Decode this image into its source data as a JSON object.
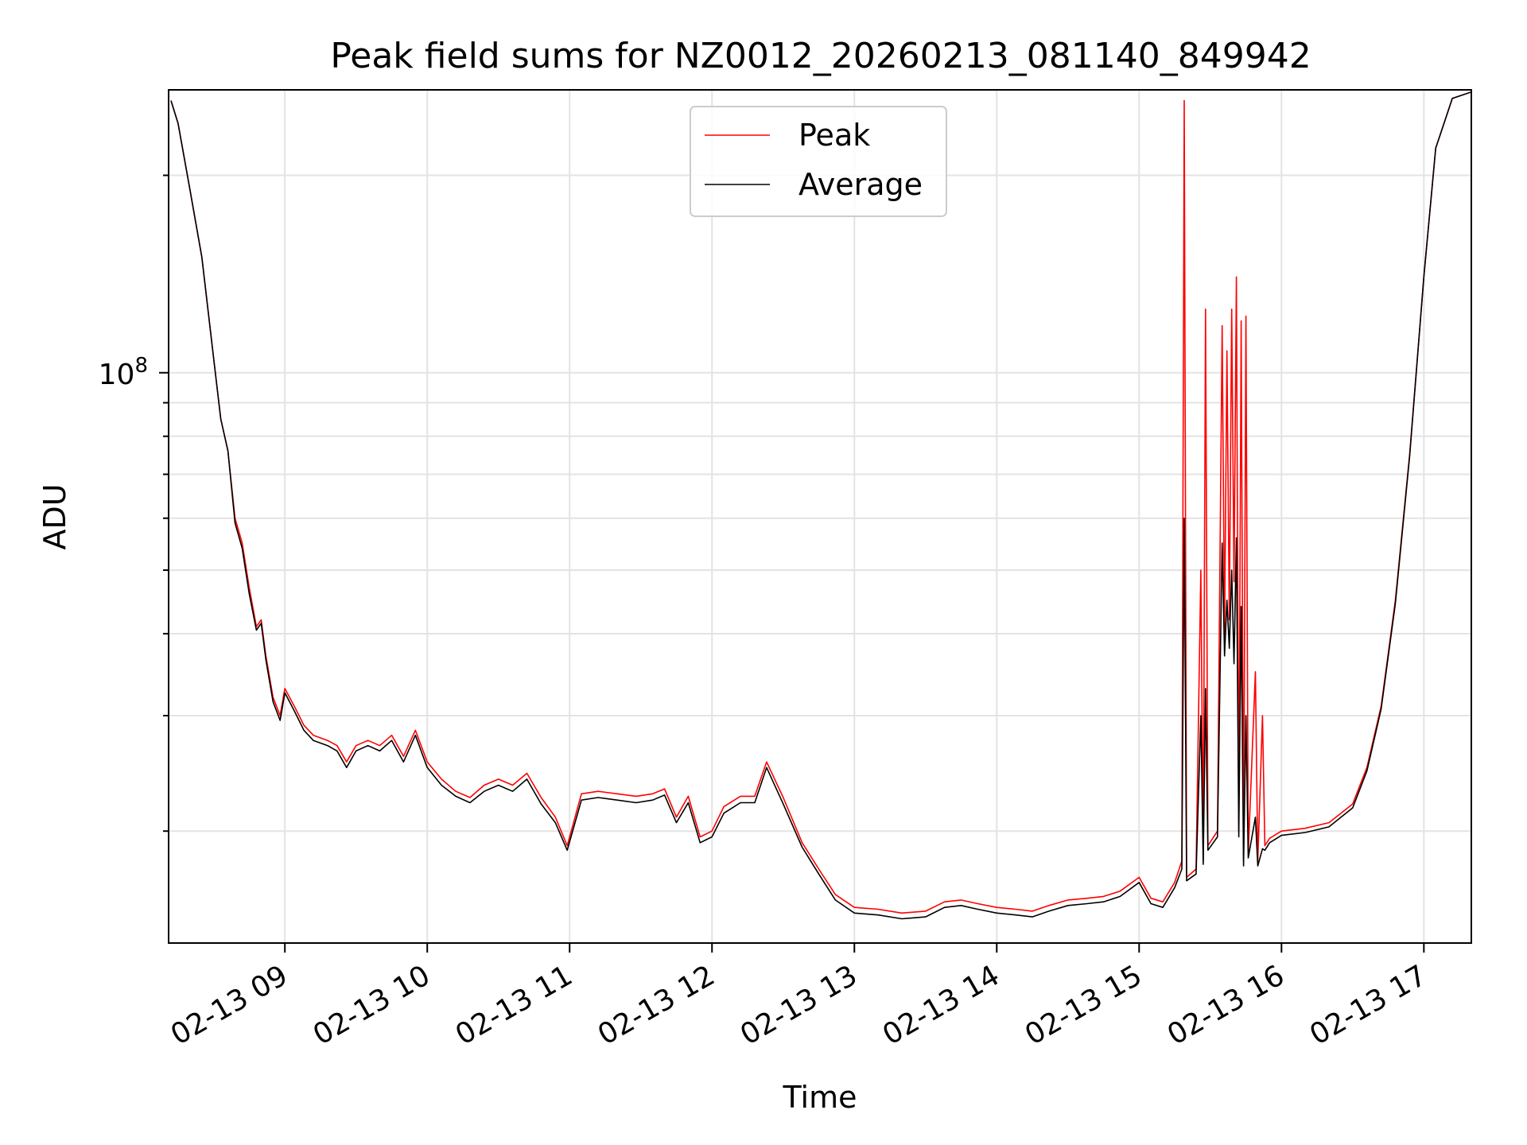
{
  "chart_data": {
    "type": "line",
    "title": "Peak field sums for NZ0012_20260213_081140_849942",
    "xlabel": "Time",
    "ylabel": "ADU",
    "y_scale": "log",
    "grid": true,
    "legend_position": "upper-center",
    "x_tick_labels": [
      "02-13 09",
      "02-13 10",
      "02-13 11",
      "02-13 12",
      "02-13 13",
      "02-13 14",
      "02-13 15",
      "02-13 16",
      "02-13 17"
    ],
    "y_tick_labels": [
      {
        "base": "10",
        "exponent": "8"
      }
    ],
    "xlim": [
      "2026-02-13 08:11",
      "2026-02-13 17:20"
    ],
    "ylim": [
      13500000,
      270000000
    ],
    "series": [
      {
        "name": "Peak",
        "color": "#ff0000",
        "points": [
          [
            "2026-02-13 08:12",
            260000000
          ],
          [
            "2026-02-13 08:15",
            240000000
          ],
          [
            "2026-02-13 08:20",
            190000000
          ],
          [
            "2026-02-13 08:25",
            150000000
          ],
          [
            "2026-02-13 08:30",
            105000000
          ],
          [
            "2026-02-13 08:33",
            85000000
          ],
          [
            "2026-02-13 08:36",
            76000000
          ],
          [
            "2026-02-13 08:39",
            60000000
          ],
          [
            "2026-02-13 08:42",
            55000000
          ],
          [
            "2026-02-13 08:45",
            47000000
          ],
          [
            "2026-02-13 08:48",
            41000000
          ],
          [
            "2026-02-13 08:50",
            42000000
          ],
          [
            "2026-02-13 08:52",
            37000000
          ],
          [
            "2026-02-13 08:55",
            32000000
          ],
          [
            "2026-02-13 08:58",
            30000000
          ],
          [
            "2026-02-13 09:00",
            33000000
          ],
          [
            "2026-02-13 09:04",
            31000000
          ],
          [
            "2026-02-13 09:08",
            29000000
          ],
          [
            "2026-02-13 09:12",
            28000000
          ],
          [
            "2026-02-13 09:18",
            27500000
          ],
          [
            "2026-02-13 09:22",
            27000000
          ],
          [
            "2026-02-13 09:26",
            25500000
          ],
          [
            "2026-02-13 09:30",
            27000000
          ],
          [
            "2026-02-13 09:35",
            27500000
          ],
          [
            "2026-02-13 09:40",
            27000000
          ],
          [
            "2026-02-13 09:45",
            28000000
          ],
          [
            "2026-02-13 09:50",
            26000000
          ],
          [
            "2026-02-13 09:55",
            28500000
          ],
          [
            "2026-02-13 10:00",
            25500000
          ],
          [
            "2026-02-13 10:06",
            24000000
          ],
          [
            "2026-02-13 10:12",
            23000000
          ],
          [
            "2026-02-13 10:18",
            22500000
          ],
          [
            "2026-02-13 10:24",
            23500000
          ],
          [
            "2026-02-13 10:30",
            24000000
          ],
          [
            "2026-02-13 10:36",
            23500000
          ],
          [
            "2026-02-13 10:42",
            24500000
          ],
          [
            "2026-02-13 10:48",
            22500000
          ],
          [
            "2026-02-13 10:54",
            21000000
          ],
          [
            "2026-02-13 10:59",
            19000000
          ],
          [
            "2026-02-13 11:05",
            22800000
          ],
          [
            "2026-02-13 11:12",
            23000000
          ],
          [
            "2026-02-13 11:20",
            22800000
          ],
          [
            "2026-02-13 11:28",
            22600000
          ],
          [
            "2026-02-13 11:35",
            22800000
          ],
          [
            "2026-02-13 11:40",
            23200000
          ],
          [
            "2026-02-13 11:45",
            21000000
          ],
          [
            "2026-02-13 11:50",
            22600000
          ],
          [
            "2026-02-13 11:55",
            19600000
          ],
          [
            "2026-02-13 12:00",
            20000000
          ],
          [
            "2026-02-13 12:05",
            21800000
          ],
          [
            "2026-02-13 12:12",
            22600000
          ],
          [
            "2026-02-13 12:18",
            22600000
          ],
          [
            "2026-02-13 12:23",
            25500000
          ],
          [
            "2026-02-13 12:30",
            22500000
          ],
          [
            "2026-02-13 12:38",
            19200000
          ],
          [
            "2026-02-13 12:45",
            17500000
          ],
          [
            "2026-02-13 12:52",
            16000000
          ],
          [
            "2026-02-13 13:00",
            15300000
          ],
          [
            "2026-02-13 13:10",
            15200000
          ],
          [
            "2026-02-13 13:20",
            15000000
          ],
          [
            "2026-02-13 13:30",
            15100000
          ],
          [
            "2026-02-13 13:38",
            15600000
          ],
          [
            "2026-02-13 13:45",
            15700000
          ],
          [
            "2026-02-13 13:52",
            15500000
          ],
          [
            "2026-02-13 14:00",
            15300000
          ],
          [
            "2026-02-13 14:08",
            15200000
          ],
          [
            "2026-02-13 14:15",
            15100000
          ],
          [
            "2026-02-13 14:22",
            15400000
          ],
          [
            "2026-02-13 14:30",
            15700000
          ],
          [
            "2026-02-13 14:38",
            15800000
          ],
          [
            "2026-02-13 14:45",
            15900000
          ],
          [
            "2026-02-13 14:52",
            16200000
          ],
          [
            "2026-02-13 15:00",
            17000000
          ],
          [
            "2026-02-13 15:05",
            15800000
          ],
          [
            "2026-02-13 15:10",
            15600000
          ],
          [
            "2026-02-13 15:15",
            16700000
          ],
          [
            "2026-02-13 15:18",
            18000000
          ],
          [
            "2026-02-13 15:19",
            260000000
          ],
          [
            "2026-02-13 15:20",
            17000000
          ],
          [
            "2026-02-13 15:24",
            17500000
          ],
          [
            "2026-02-13 15:26",
            50000000
          ],
          [
            "2026-02-13 15:27",
            18000000
          ],
          [
            "2026-02-13 15:28",
            125000000
          ],
          [
            "2026-02-13 15:29",
            19000000
          ],
          [
            "2026-02-13 15:33",
            20000000
          ],
          [
            "2026-02-13 15:35",
            118000000
          ],
          [
            "2026-02-13 15:36",
            40000000
          ],
          [
            "2026-02-13 15:37",
            108000000
          ],
          [
            "2026-02-13 15:38",
            42000000
          ],
          [
            "2026-02-13 15:39",
            125000000
          ],
          [
            "2026-02-13 15:40",
            48000000
          ],
          [
            "2026-02-13 15:41",
            140000000
          ],
          [
            "2026-02-13 15:42",
            20000000
          ],
          [
            "2026-02-13 15:43",
            120000000
          ],
          [
            "2026-02-13 15:44",
            18000000
          ],
          [
            "2026-02-13 15:45",
            122000000
          ],
          [
            "2026-02-13 15:46",
            18500000
          ],
          [
            "2026-02-13 15:49",
            35000000
          ],
          [
            "2026-02-13 15:50",
            18000000
          ],
          [
            "2026-02-13 15:52",
            30000000
          ],
          [
            "2026-02-13 15:53",
            19000000
          ],
          [
            "2026-02-13 15:55",
            19500000
          ],
          [
            "2026-02-13 16:00",
            20000000
          ],
          [
            "2026-02-13 16:10",
            20200000
          ],
          [
            "2026-02-13 16:20",
            20600000
          ],
          [
            "2026-02-13 16:30",
            22000000
          ],
          [
            "2026-02-13 16:36",
            25000000
          ],
          [
            "2026-02-13 16:42",
            31000000
          ],
          [
            "2026-02-13 16:48",
            45000000
          ],
          [
            "2026-02-13 16:54",
            75000000
          ],
          [
            "2026-02-13 17:00",
            140000000
          ],
          [
            "2026-02-13 17:05",
            220000000
          ],
          [
            "2026-02-13 17:12",
            262000000
          ],
          [
            "2026-02-13 17:20",
            268000000
          ]
        ]
      },
      {
        "name": "Average",
        "color": "#000000",
        "points": [
          [
            "2026-02-13 08:12",
            260000000
          ],
          [
            "2026-02-13 08:15",
            240000000
          ],
          [
            "2026-02-13 08:20",
            190000000
          ],
          [
            "2026-02-13 08:25",
            150000000
          ],
          [
            "2026-02-13 08:30",
            105000000
          ],
          [
            "2026-02-13 08:33",
            85000000
          ],
          [
            "2026-02-13 08:36",
            76000000
          ],
          [
            "2026-02-13 08:39",
            59000000
          ],
          [
            "2026-02-13 08:42",
            54000000
          ],
          [
            "2026-02-13 08:45",
            46000000
          ],
          [
            "2026-02-13 08:48",
            40500000
          ],
          [
            "2026-02-13 08:50",
            41500000
          ],
          [
            "2026-02-13 08:52",
            36500000
          ],
          [
            "2026-02-13 08:55",
            31500000
          ],
          [
            "2026-02-13 08:58",
            29500000
          ],
          [
            "2026-02-13 09:00",
            32500000
          ],
          [
            "2026-02-13 09:04",
            30500000
          ],
          [
            "2026-02-13 09:08",
            28500000
          ],
          [
            "2026-02-13 09:12",
            27500000
          ],
          [
            "2026-02-13 09:18",
            27000000
          ],
          [
            "2026-02-13 09:22",
            26500000
          ],
          [
            "2026-02-13 09:26",
            25000000
          ],
          [
            "2026-02-13 09:30",
            26500000
          ],
          [
            "2026-02-13 09:35",
            27000000
          ],
          [
            "2026-02-13 09:40",
            26500000
          ],
          [
            "2026-02-13 09:45",
            27500000
          ],
          [
            "2026-02-13 09:50",
            25500000
          ],
          [
            "2026-02-13 09:55",
            28000000
          ],
          [
            "2026-02-13 10:00",
            25000000
          ],
          [
            "2026-02-13 10:06",
            23500000
          ],
          [
            "2026-02-13 10:12",
            22600000
          ],
          [
            "2026-02-13 10:18",
            22100000
          ],
          [
            "2026-02-13 10:24",
            23000000
          ],
          [
            "2026-02-13 10:30",
            23500000
          ],
          [
            "2026-02-13 10:36",
            23000000
          ],
          [
            "2026-02-13 10:42",
            24000000
          ],
          [
            "2026-02-13 10:48",
            22000000
          ],
          [
            "2026-02-13 10:54",
            20600000
          ],
          [
            "2026-02-13 10:59",
            18700000
          ],
          [
            "2026-02-13 11:05",
            22300000
          ],
          [
            "2026-02-13 11:12",
            22500000
          ],
          [
            "2026-02-13 11:20",
            22300000
          ],
          [
            "2026-02-13 11:28",
            22100000
          ],
          [
            "2026-02-13 11:35",
            22300000
          ],
          [
            "2026-02-13 11:40",
            22700000
          ],
          [
            "2026-02-13 11:45",
            20600000
          ],
          [
            "2026-02-13 11:50",
            22100000
          ],
          [
            "2026-02-13 11:55",
            19200000
          ],
          [
            "2026-02-13 12:00",
            19600000
          ],
          [
            "2026-02-13 12:05",
            21300000
          ],
          [
            "2026-02-13 12:12",
            22100000
          ],
          [
            "2026-02-13 12:18",
            22100000
          ],
          [
            "2026-02-13 12:23",
            25000000
          ],
          [
            "2026-02-13 12:30",
            22000000
          ],
          [
            "2026-02-13 12:38",
            18900000
          ],
          [
            "2026-02-13 12:45",
            17200000
          ],
          [
            "2026-02-13 12:52",
            15700000
          ],
          [
            "2026-02-13 13:00",
            15000000
          ],
          [
            "2026-02-13 13:10",
            14900000
          ],
          [
            "2026-02-13 13:20",
            14700000
          ],
          [
            "2026-02-13 13:30",
            14800000
          ],
          [
            "2026-02-13 13:38",
            15300000
          ],
          [
            "2026-02-13 13:45",
            15400000
          ],
          [
            "2026-02-13 13:52",
            15200000
          ],
          [
            "2026-02-13 14:00",
            15000000
          ],
          [
            "2026-02-13 14:08",
            14900000
          ],
          [
            "2026-02-13 14:15",
            14800000
          ],
          [
            "2026-02-13 14:22",
            15100000
          ],
          [
            "2026-02-13 14:30",
            15400000
          ],
          [
            "2026-02-13 14:38",
            15500000
          ],
          [
            "2026-02-13 14:45",
            15600000
          ],
          [
            "2026-02-13 14:52",
            15900000
          ],
          [
            "2026-02-13 15:00",
            16700000
          ],
          [
            "2026-02-13 15:05",
            15500000
          ],
          [
            "2026-02-13 15:10",
            15300000
          ],
          [
            "2026-02-13 15:15",
            16400000
          ],
          [
            "2026-02-13 15:18",
            17500000
          ],
          [
            "2026-02-13 15:19",
            60000000
          ],
          [
            "2026-02-13 15:20",
            16800000
          ],
          [
            "2026-02-13 15:24",
            17200000
          ],
          [
            "2026-02-13 15:26",
            30000000
          ],
          [
            "2026-02-13 15:27",
            17800000
          ],
          [
            "2026-02-13 15:28",
            33000000
          ],
          [
            "2026-02-13 15:29",
            18700000
          ],
          [
            "2026-02-13 15:33",
            19600000
          ],
          [
            "2026-02-13 15:35",
            55000000
          ],
          [
            "2026-02-13 15:36",
            37000000
          ],
          [
            "2026-02-13 15:37",
            45000000
          ],
          [
            "2026-02-13 15:38",
            38000000
          ],
          [
            "2026-02-13 15:39",
            50000000
          ],
          [
            "2026-02-13 15:40",
            36000000
          ],
          [
            "2026-02-13 15:41",
            56000000
          ],
          [
            "2026-02-13 15:42",
            19600000
          ],
          [
            "2026-02-13 15:43",
            44000000
          ],
          [
            "2026-02-13 15:44",
            17700000
          ],
          [
            "2026-02-13 15:45",
            30000000
          ],
          [
            "2026-02-13 15:46",
            18200000
          ],
          [
            "2026-02-13 15:49",
            21000000
          ],
          [
            "2026-02-13 15:50",
            17700000
          ],
          [
            "2026-02-13 15:52",
            18800000
          ],
          [
            "2026-02-13 15:53",
            18700000
          ],
          [
            "2026-02-13 15:55",
            19200000
          ],
          [
            "2026-02-13 16:00",
            19700000
          ],
          [
            "2026-02-13 16:10",
            19900000
          ],
          [
            "2026-02-13 16:20",
            20300000
          ],
          [
            "2026-02-13 16:30",
            21700000
          ],
          [
            "2026-02-13 16:36",
            24700000
          ],
          [
            "2026-02-13 16:42",
            30700000
          ],
          [
            "2026-02-13 16:48",
            44500000
          ],
          [
            "2026-02-13 16:54",
            74500000
          ],
          [
            "2026-02-13 17:00",
            140000000
          ],
          [
            "2026-02-13 17:05",
            220000000
          ],
          [
            "2026-02-13 17:12",
            262000000
          ],
          [
            "2026-02-13 17:20",
            268000000
          ]
        ]
      }
    ]
  }
}
